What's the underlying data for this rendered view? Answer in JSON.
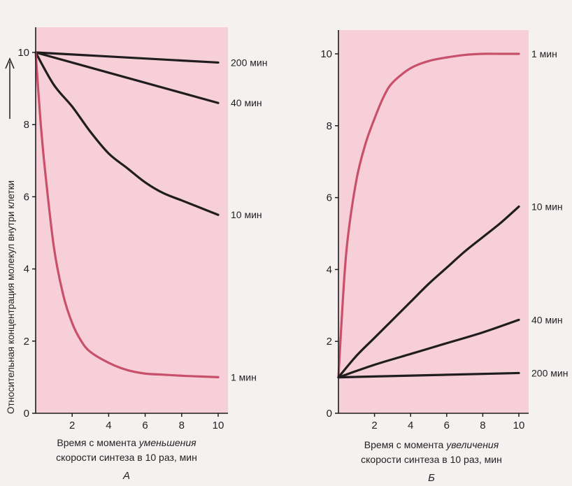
{
  "y_axis_label": "Относительная концентрация молекул внутри клетки",
  "chart_data": [
    {
      "type": "line",
      "panel_label": "А",
      "xlabel_line1_prefix": "Время с момента",
      "xlabel_line1_emph": "уменьшения",
      "xlabel_line2": "скорости синтеза в 10 раз, мин",
      "ylabel": "Относительная концентрация молекул внутри клетки",
      "xlim": [
        0,
        10.4
      ],
      "ylim": [
        0,
        10.6
      ],
      "xticks": [
        2,
        4,
        6,
        8,
        10
      ],
      "yticks": [
        0,
        2,
        4,
        6,
        8,
        10
      ],
      "series": [
        {
          "name": "200 мин",
          "color": "#1f1d1f",
          "x": [
            0,
            10
          ],
          "y": [
            10,
            9.72
          ]
        },
        {
          "name": "40 мин",
          "color": "#1f1d1f",
          "x": [
            0,
            10
          ],
          "y": [
            10,
            8.6
          ]
        },
        {
          "name": "10 мин",
          "color": "#1f1d1f",
          "x": [
            0,
            1,
            2,
            3,
            4,
            5,
            6,
            7,
            8,
            9,
            10
          ],
          "y": [
            10,
            9.1,
            8.5,
            7.8,
            7.2,
            6.8,
            6.4,
            6.1,
            5.9,
            5.7,
            5.5
          ]
        },
        {
          "name": "1 мин",
          "color": "#c8506a",
          "x": [
            0,
            0.25,
            0.5,
            1,
            1.5,
            2,
            2.5,
            3,
            4,
            5,
            6,
            7,
            8,
            9,
            10
          ],
          "y": [
            10,
            8.2,
            6.8,
            4.6,
            3.3,
            2.5,
            2.0,
            1.7,
            1.4,
            1.2,
            1.1,
            1.07,
            1.04,
            1.02,
            1.0
          ]
        }
      ]
    },
    {
      "type": "line",
      "panel_label": "Б",
      "xlabel_line1_prefix": "Время с момента",
      "xlabel_line1_emph": "увеличения",
      "xlabel_line2": "скорости синтеза в 10 раз, мин",
      "xlim": [
        0,
        10.4
      ],
      "ylim": [
        0,
        10.6
      ],
      "xticks": [
        2,
        4,
        6,
        8,
        10
      ],
      "yticks": [
        0,
        2,
        4,
        6,
        8,
        10
      ],
      "series": [
        {
          "name": "1 мин",
          "color": "#c8506a",
          "x": [
            0,
            0.25,
            0.5,
            1,
            1.5,
            2,
            2.5,
            3,
            4,
            5,
            6,
            7,
            8,
            9,
            10
          ],
          "y": [
            1,
            3.2,
            4.8,
            6.5,
            7.5,
            8.2,
            8.8,
            9.2,
            9.6,
            9.8,
            9.9,
            9.97,
            10,
            10,
            10
          ]
        },
        {
          "name": "10 мин",
          "color": "#1f1d1f",
          "x": [
            0,
            1,
            2,
            3,
            4,
            5,
            6,
            7,
            8,
            9,
            10
          ],
          "y": [
            1,
            1.6,
            2.1,
            2.6,
            3.1,
            3.6,
            4.05,
            4.5,
            4.9,
            5.3,
            5.75
          ]
        },
        {
          "name": "40 мин",
          "color": "#1f1d1f",
          "x": [
            0,
            2,
            4,
            6,
            8,
            10
          ],
          "y": [
            1,
            1.35,
            1.65,
            1.95,
            2.25,
            2.6
          ]
        },
        {
          "name": "200 мин",
          "color": "#1f1d1f",
          "x": [
            0,
            10
          ],
          "y": [
            1,
            1.12
          ]
        }
      ]
    }
  ],
  "colors": {
    "plot_background": "#f6cfd8",
    "axis": "#1c1c1c",
    "red_curve": "#c8506a",
    "black_curve": "#1f1d1f"
  },
  "icons": {
    "y_axis_arrow": "up-arrow-icon"
  }
}
